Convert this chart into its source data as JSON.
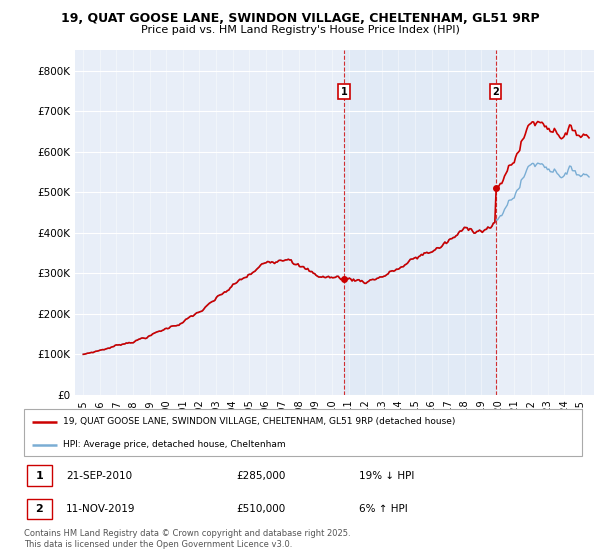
{
  "title_line1": "19, QUAT GOOSE LANE, SWINDON VILLAGE, CHELTENHAM, GL51 9RP",
  "title_line2": "Price paid vs. HM Land Registry's House Price Index (HPI)",
  "background_color": "#ffffff",
  "plot_bg_color": "#e8eef8",
  "plot_bg_between_color": "#dce6f5",
  "grid_color": "#ffffff",
  "sale1_date_x": 2010.73,
  "sale1_price": 285000,
  "sale2_date_x": 2019.87,
  "sale2_price": 510000,
  "legend_house": "19, QUAT GOOSE LANE, SWINDON VILLAGE, CHELTENHAM, GL51 9RP (detached house)",
  "legend_hpi": "HPI: Average price, detached house, Cheltenham",
  "note1_date": "21-SEP-2010",
  "note1_price": "£285,000",
  "note1_hpi": "19% ↓ HPI",
  "note2_date": "11-NOV-2019",
  "note2_price": "£510,000",
  "note2_hpi": "6% ↑ HPI",
  "footer": "Contains HM Land Registry data © Crown copyright and database right 2025.\nThis data is licensed under the Open Government Licence v3.0.",
  "house_color": "#cc0000",
  "hpi_color": "#7aadd4",
  "dashed_color": "#cc0000",
  "ylim_max": 850000,
  "ylim_min": 0,
  "xlim_min": 1994.5,
  "xlim_max": 2025.8
}
